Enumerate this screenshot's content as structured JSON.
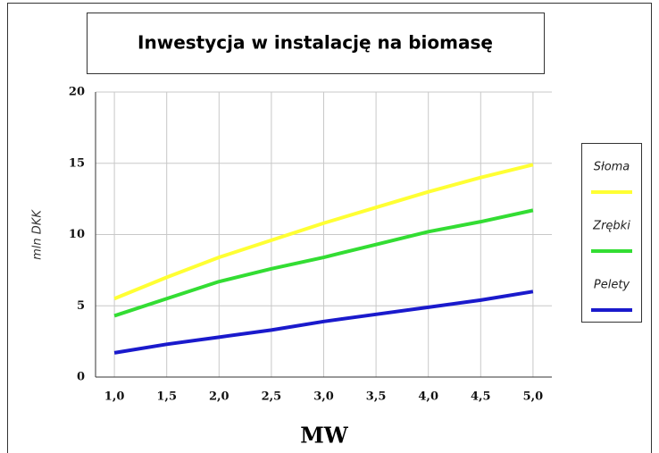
{
  "chart_data": {
    "type": "line",
    "title": "Inwestycja w instalację na biomasę",
    "x_label": "MW",
    "y_label": "mln DKK",
    "x": [
      1.0,
      1.5,
      2.0,
      2.5,
      3.0,
      3.5,
      4.0,
      4.5,
      5.0
    ],
    "series": [
      {
        "name": "Słoma",
        "color": "#ffff33",
        "values": [
          5.5,
          7.0,
          8.4,
          9.6,
          10.8,
          11.9,
          13.0,
          14.0,
          14.9
        ]
      },
      {
        "name": "Zrębki",
        "color": "#33dd33",
        "values": [
          4.3,
          5.5,
          6.7,
          7.6,
          8.4,
          9.3,
          10.2,
          10.9,
          11.7
        ]
      },
      {
        "name": "Pelety",
        "color": "#1a1acc",
        "values": [
          1.7,
          2.3,
          2.8,
          3.3,
          3.9,
          4.4,
          4.9,
          5.4,
          6.0
        ]
      }
    ],
    "xlim": [
      0.82,
      5.18
    ],
    "xticks": [
      {
        "value": 1.0,
        "label": "1,0"
      },
      {
        "value": 1.5,
        "label": "1,5"
      },
      {
        "value": 2.0,
        "label": "2,0"
      },
      {
        "value": 2.5,
        "label": "2,5"
      },
      {
        "value": 3.0,
        "label": "3,0"
      },
      {
        "value": 3.5,
        "label": "3,5"
      },
      {
        "value": 4.0,
        "label": "4,0"
      },
      {
        "value": 4.5,
        "label": "4,5"
      },
      {
        "value": 5.0,
        "label": "5,0"
      }
    ],
    "ylim": [
      0,
      20
    ],
    "yticks": [
      0,
      5,
      10,
      15,
      20
    ],
    "grid": true,
    "legend": "right"
  }
}
